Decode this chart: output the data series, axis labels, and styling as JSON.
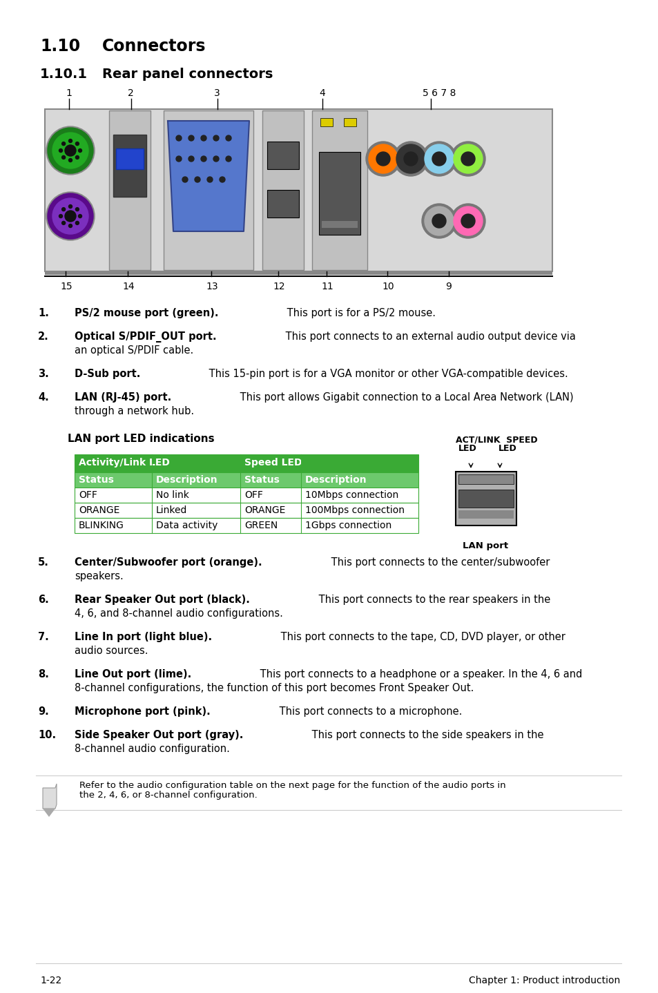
{
  "bg_color": "#ffffff",
  "title1": "1.10",
  "title1_text": "Connectors",
  "title2": "1.10.1",
  "title2_text": "Rear panel connectors",
  "items": [
    {
      "num": "1.",
      "bold": "PS/2 mouse port (green).",
      "text": " This port is for a PS/2 mouse.",
      "lines": 1
    },
    {
      "num": "2.",
      "bold": "Optical S/PDIF_OUT port.",
      "text": " This port connects to an external audio output device via",
      "text2": "an optical S/PDIF cable.",
      "lines": 2
    },
    {
      "num": "3.",
      "bold": "D-Sub port.",
      "text": " This 15-pin port is for a VGA monitor or other VGA-compatible devices.",
      "lines": 1
    },
    {
      "num": "4.",
      "bold": "LAN (RJ-45) port.",
      "text": " This port allows Gigabit connection to a Local Area Network (LAN)",
      "text2": "through a network hub.",
      "lines": 2
    },
    {
      "num": "5.",
      "bold": "Center/Subwoofer port (orange).",
      "text": " This port connects to the center/subwoofer",
      "text2": "speakers.",
      "lines": 2
    },
    {
      "num": "6.",
      "bold": "Rear Speaker Out port (black).",
      "text": " This port connects to the rear speakers in the",
      "text2": "4, 6, and 8-channel audio configurations.",
      "lines": 2
    },
    {
      "num": "7.",
      "bold": "Line In port (light blue).",
      "text": " This port connects to the tape, CD, DVD player, or other",
      "text2": "audio sources.",
      "lines": 2
    },
    {
      "num": "8.",
      "bold": "Line Out port (lime).",
      "text": " This port connects to a headphone or a speaker. In the 4, 6 and",
      "text2": "8-channel configurations, the function of this port becomes Front Speaker Out.",
      "lines": 2
    },
    {
      "num": "9.",
      "bold": "Microphone port (pink).",
      "text": " This port connects to a microphone.",
      "lines": 1
    },
    {
      "num": "10.",
      "bold": "Side Speaker Out port (gray).",
      "text": " This port connects to the side speakers in the",
      "text2": "8-channel audio configuration.",
      "lines": 2
    }
  ],
  "lan_section_title": "LAN port LED indications",
  "lan_table_header1": "Activity/Link LED",
  "lan_table_header2": "Speed LED",
  "lan_subheaders": [
    "Status",
    "Description",
    "Status",
    "Description"
  ],
  "lan_rows": [
    [
      "OFF",
      "No link",
      "OFF",
      "10Mbps connection"
    ],
    [
      "ORANGE",
      "Linked",
      "ORANGE",
      "100Mbps connection"
    ],
    [
      "BLINKING",
      "Data activity",
      "GREEN",
      "1Gbps connection"
    ]
  ],
  "table_green_dark": "#3aaa35",
  "table_green_light": "#6dc96d",
  "note_line1": "Refer to the audio configuration table on the next page for the function of the audio ports in",
  "note_line2": "the 2, 4, 6, or 8-channel configuration.",
  "footer_left": "1-22",
  "footer_right": "Chapter 1: Product introduction"
}
